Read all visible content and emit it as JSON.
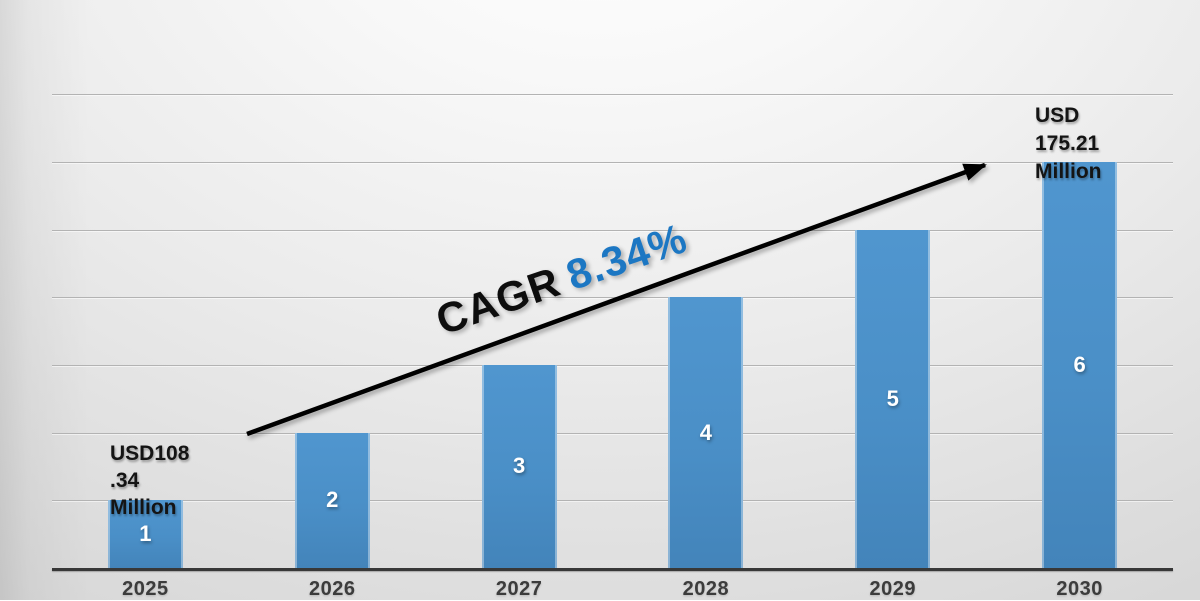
{
  "chart_data": {
    "type": "bar",
    "title": "",
    "xlabel": "",
    "ylabel": "",
    "categories": [
      "2025",
      "2026",
      "2027",
      "2028",
      "2029",
      "2030"
    ],
    "values": [
      1,
      2,
      3,
      4,
      5,
      6
    ],
    "bar_value_labels": [
      "1",
      "2",
      "3",
      "4",
      "5",
      "6"
    ],
    "ylim": [
      0,
      7.5
    ],
    "gridline_values": [
      1,
      2,
      3,
      4,
      5,
      6,
      7
    ],
    "grid": "horizontal",
    "legend": "none",
    "annotations": {
      "cagr_label": "CAGR",
      "cagr_value": "8.34%",
      "first_point_label": "USD108.34 Million",
      "first_point_label_lines": [
        "USD108",
        ".34",
        "Million"
      ],
      "last_point_label": "USD 175.21 Million",
      "last_point_label_lines": [
        "USD",
        "175.21",
        "Million"
      ],
      "trend_arrow_direction": "up-right"
    }
  },
  "colors": {
    "bar": "#4a8fc7",
    "cagr_value": "#1c77c3",
    "gridline": "#b3b3b3",
    "axis_line": "#383838",
    "tick_label": "#3c3c3c",
    "label_dark": "#141414",
    "bar_value_label": "#ffffff",
    "arrow": "#000000",
    "background_light": "#ffffff",
    "background_dark": "#c7c7c7"
  }
}
